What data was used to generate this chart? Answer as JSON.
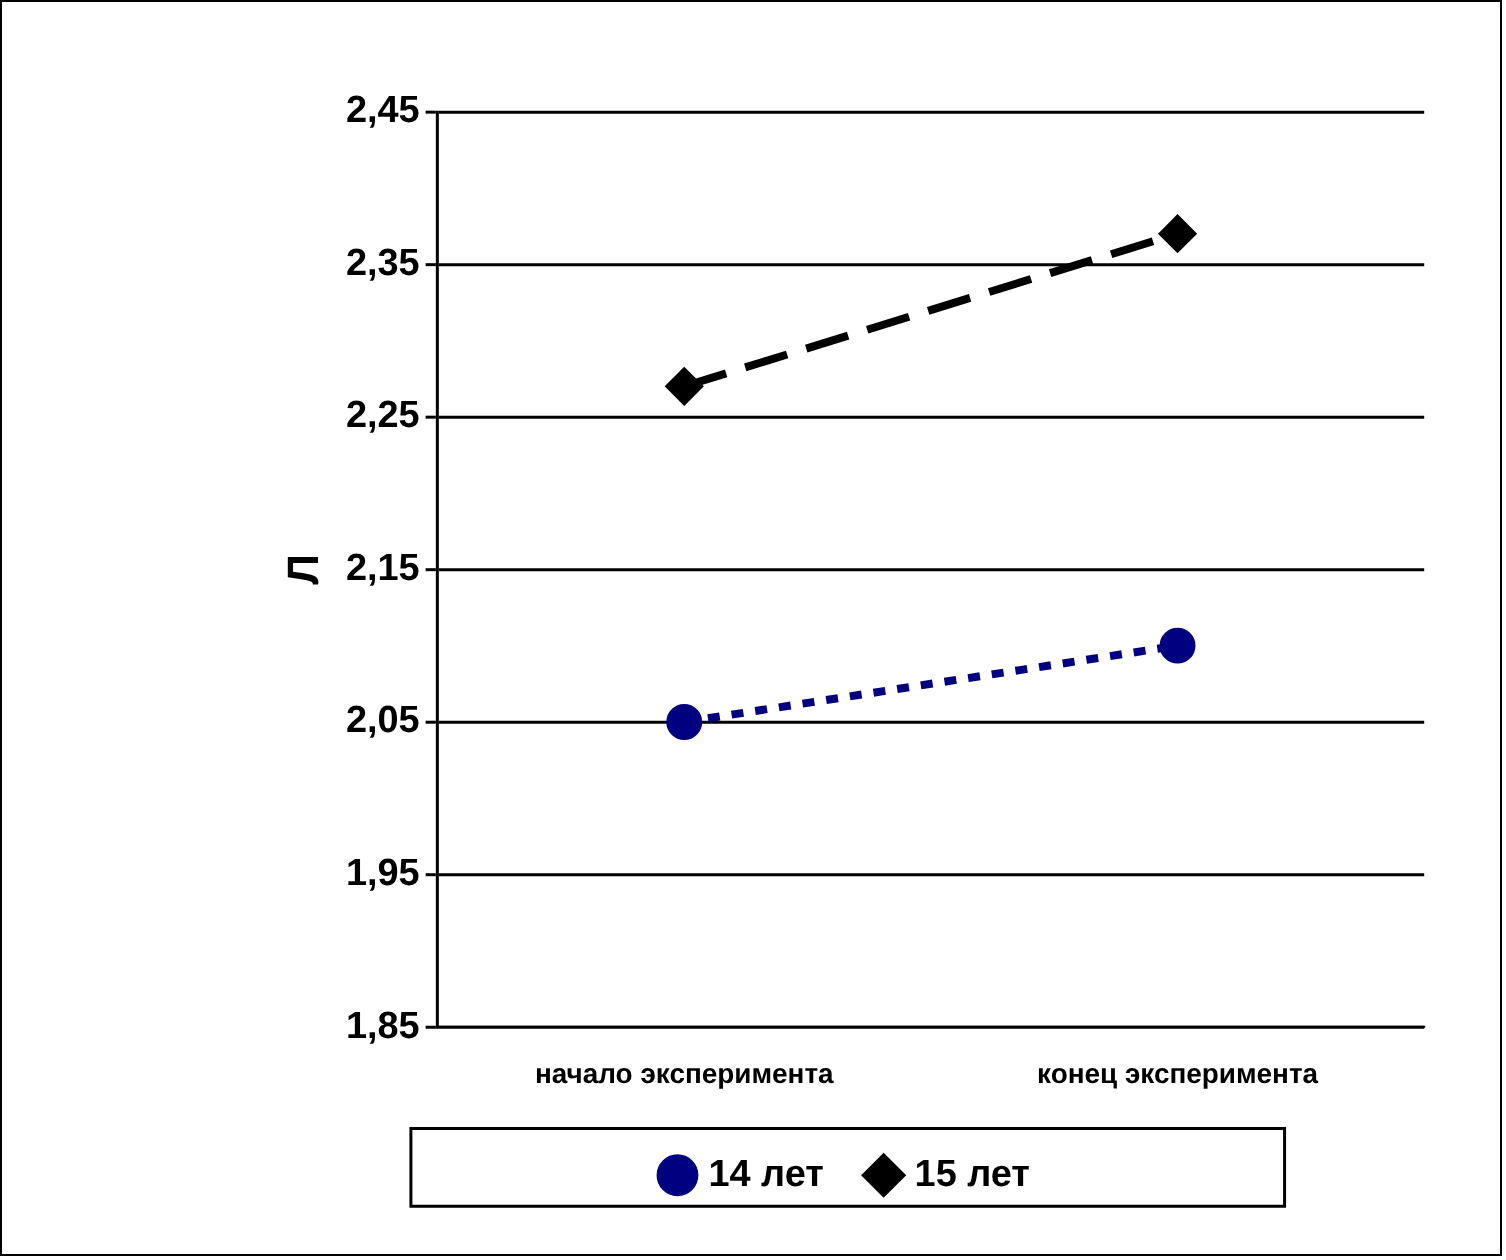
{
  "chart_data": {
    "type": "line",
    "ylabel": "Л",
    "categories": [
      "начало эксперимента",
      "конец эксперимента"
    ],
    "series": [
      {
        "name": "14 лет",
        "color": "#000080",
        "values": [
          2.05,
          2.1
        ],
        "marker": "circle",
        "line_style": "dotted"
      },
      {
        "name": "15 лет",
        "color": "#000000",
        "values": [
          2.27,
          2.37
        ],
        "marker": "diamond",
        "line_style": "dashed"
      }
    ],
    "ylim": [
      1.85,
      2.45
    ],
    "yticks": [
      {
        "value": 1.85,
        "label": "1,85"
      },
      {
        "value": 1.95,
        "label": "1,95"
      },
      {
        "value": 2.05,
        "label": "2,05"
      },
      {
        "value": 2.15,
        "label": "2,15"
      },
      {
        "value": 2.25,
        "label": "2,25"
      },
      {
        "value": 2.35,
        "label": "2,35"
      },
      {
        "value": 2.45,
        "label": "2,45"
      }
    ],
    "grid": "y",
    "legend": "bottom"
  }
}
